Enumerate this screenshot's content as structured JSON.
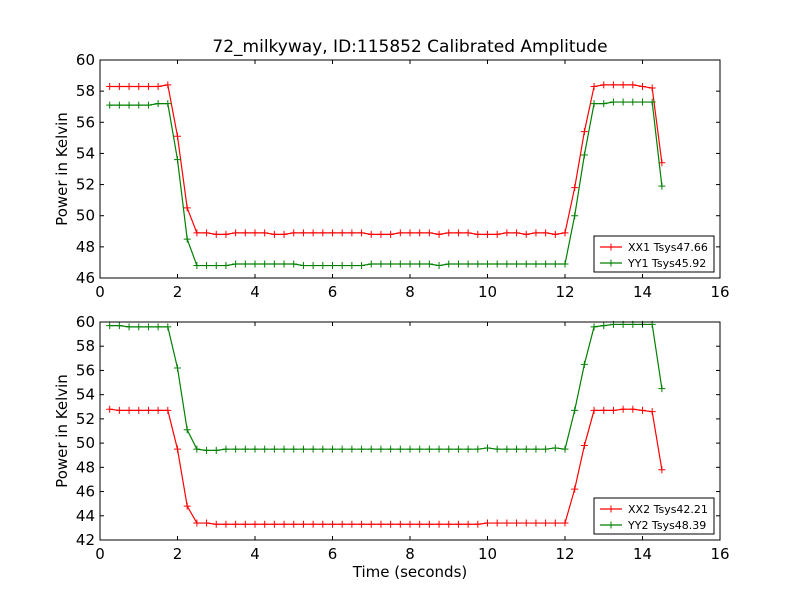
{
  "title": "72_milkyway, ID:115852 Calibrated Amplitude",
  "chart_data": [
    {
      "type": "line",
      "ylabel": "Power in Kelvin",
      "xlabel": "",
      "xlim": [
        0,
        16
      ],
      "ylim": [
        46,
        60
      ],
      "xticks": [
        "0",
        "2",
        "4",
        "6",
        "8",
        "10",
        "12",
        "14",
        "16"
      ],
      "yticks": [
        "46",
        "48",
        "50",
        "52",
        "54",
        "56",
        "58",
        "60"
      ],
      "legend_position": "lower-right",
      "x": [
        0.25,
        0.5,
        0.75,
        1.0,
        1.25,
        1.5,
        1.75,
        2.0,
        2.25,
        2.5,
        2.75,
        3.0,
        3.25,
        3.5,
        3.75,
        4.0,
        4.25,
        4.5,
        4.75,
        5.0,
        5.25,
        5.5,
        5.75,
        6.0,
        6.25,
        6.5,
        6.75,
        7.0,
        7.25,
        7.5,
        7.75,
        8.0,
        8.25,
        8.5,
        8.75,
        9.0,
        9.25,
        9.5,
        9.75,
        10.0,
        10.25,
        10.5,
        10.75,
        11.0,
        11.25,
        11.5,
        11.75,
        12.0,
        12.25,
        12.5,
        12.75,
        13.0,
        13.25,
        13.5,
        13.75,
        14.0,
        14.25,
        14.5
      ],
      "series": [
        {
          "name": "XX1 Tsys47.66",
          "color": "#ff0000",
          "values": [
            58.3,
            58.3,
            58.3,
            58.3,
            58.3,
            58.3,
            58.4,
            55.1,
            50.5,
            48.9,
            48.9,
            48.8,
            48.8,
            48.9,
            48.9,
            48.9,
            48.9,
            48.8,
            48.8,
            48.9,
            48.9,
            48.9,
            48.9,
            48.9,
            48.9,
            48.9,
            48.9,
            48.8,
            48.8,
            48.8,
            48.9,
            48.9,
            48.9,
            48.9,
            48.8,
            48.9,
            48.9,
            48.9,
            48.8,
            48.8,
            48.8,
            48.9,
            48.9,
            48.8,
            48.9,
            48.9,
            48.8,
            48.9,
            51.8,
            55.4,
            58.3,
            58.4,
            58.4,
            58.4,
            58.4,
            58.3,
            58.2,
            53.4
          ]
        },
        {
          "name": "YY1 Tsys45.92",
          "color": "#008000",
          "values": [
            57.1,
            57.1,
            57.1,
            57.1,
            57.1,
            57.2,
            57.2,
            53.6,
            48.5,
            46.8,
            46.8,
            46.8,
            46.8,
            46.9,
            46.9,
            46.9,
            46.9,
            46.9,
            46.9,
            46.9,
            46.8,
            46.8,
            46.8,
            46.8,
            46.8,
            46.8,
            46.8,
            46.9,
            46.9,
            46.9,
            46.9,
            46.9,
            46.9,
            46.9,
            46.8,
            46.9,
            46.9,
            46.9,
            46.9,
            46.9,
            46.9,
            46.9,
            46.9,
            46.9,
            46.9,
            46.9,
            46.9,
            46.9,
            50.0,
            53.9,
            57.2,
            57.2,
            57.3,
            57.3,
            57.3,
            57.3,
            57.3,
            51.9
          ]
        }
      ]
    },
    {
      "type": "line",
      "ylabel": "Power in Kelvin",
      "xlabel": "Time (seconds)",
      "xlim": [
        0,
        16
      ],
      "ylim": [
        42,
        60
      ],
      "xticks": [
        "0",
        "2",
        "4",
        "6",
        "8",
        "10",
        "12",
        "14",
        "16"
      ],
      "yticks": [
        "42",
        "44",
        "46",
        "48",
        "50",
        "52",
        "54",
        "56",
        "58",
        "60"
      ],
      "legend_position": "lower-right",
      "x": [
        0.25,
        0.5,
        0.75,
        1.0,
        1.25,
        1.5,
        1.75,
        2.0,
        2.25,
        2.5,
        2.75,
        3.0,
        3.25,
        3.5,
        3.75,
        4.0,
        4.25,
        4.5,
        4.75,
        5.0,
        5.25,
        5.5,
        5.75,
        6.0,
        6.25,
        6.5,
        6.75,
        7.0,
        7.25,
        7.5,
        7.75,
        8.0,
        8.25,
        8.5,
        8.75,
        9.0,
        9.25,
        9.5,
        9.75,
        10.0,
        10.25,
        10.5,
        10.75,
        11.0,
        11.25,
        11.5,
        11.75,
        12.0,
        12.25,
        12.5,
        12.75,
        13.0,
        13.25,
        13.5,
        13.75,
        14.0,
        14.25,
        14.5
      ],
      "series": [
        {
          "name": "XX2 Tsys42.21",
          "color": "#ff0000",
          "values": [
            52.8,
            52.7,
            52.7,
            52.7,
            52.7,
            52.7,
            52.7,
            49.5,
            44.8,
            43.4,
            43.4,
            43.3,
            43.3,
            43.3,
            43.3,
            43.3,
            43.3,
            43.3,
            43.3,
            43.3,
            43.3,
            43.3,
            43.3,
            43.3,
            43.3,
            43.3,
            43.3,
            43.3,
            43.3,
            43.3,
            43.3,
            43.3,
            43.3,
            43.3,
            43.3,
            43.3,
            43.3,
            43.3,
            43.3,
            43.4,
            43.4,
            43.4,
            43.4,
            43.4,
            43.4,
            43.4,
            43.4,
            43.4,
            46.2,
            49.8,
            52.7,
            52.7,
            52.7,
            52.8,
            52.8,
            52.7,
            52.6,
            47.8
          ]
        },
        {
          "name": "YY2 Tsys48.39",
          "color": "#008000",
          "values": [
            59.7,
            59.7,
            59.6,
            59.6,
            59.6,
            59.6,
            59.6,
            56.2,
            51.1,
            49.5,
            49.4,
            49.4,
            49.5,
            49.5,
            49.5,
            49.5,
            49.5,
            49.5,
            49.5,
            49.5,
            49.5,
            49.5,
            49.5,
            49.5,
            49.5,
            49.5,
            49.5,
            49.5,
            49.5,
            49.5,
            49.5,
            49.5,
            49.5,
            49.5,
            49.5,
            49.5,
            49.5,
            49.5,
            49.5,
            49.6,
            49.5,
            49.5,
            49.5,
            49.5,
            49.5,
            49.5,
            49.6,
            49.5,
            52.7,
            56.5,
            59.6,
            59.7,
            59.8,
            59.8,
            59.8,
            59.8,
            59.8,
            54.5
          ]
        }
      ]
    }
  ]
}
